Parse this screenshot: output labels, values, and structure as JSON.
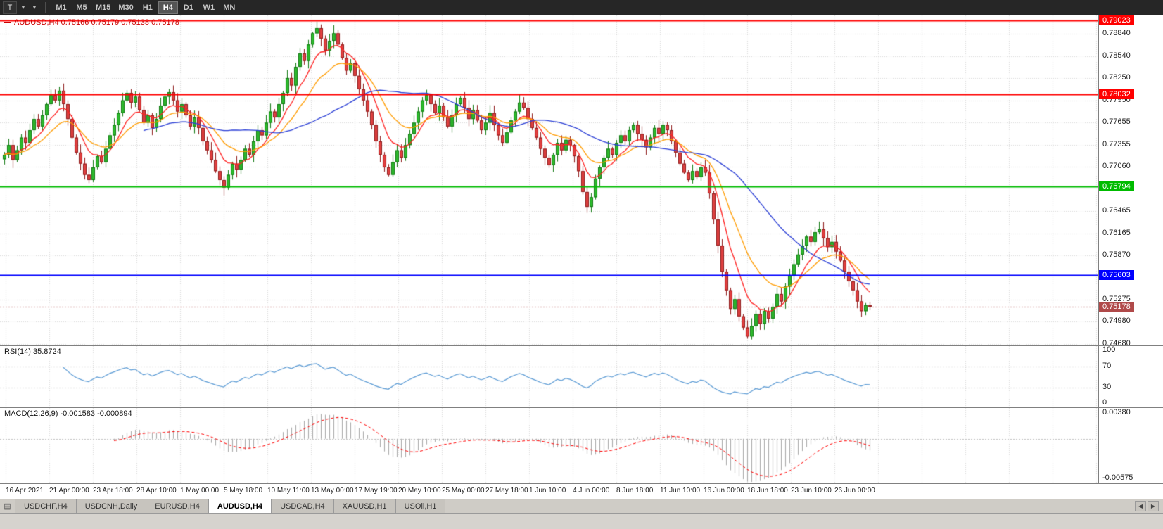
{
  "toolbar": {
    "template_button": "T",
    "dropdown_icon": "▼",
    "timeframes": [
      {
        "label": "M1",
        "active": false
      },
      {
        "label": "M5",
        "active": false
      },
      {
        "label": "M15",
        "active": false
      },
      {
        "label": "M30",
        "active": false
      },
      {
        "label": "H1",
        "active": false
      },
      {
        "label": "H4",
        "active": true
      },
      {
        "label": "D1",
        "active": false
      },
      {
        "label": "W1",
        "active": false
      },
      {
        "label": "MN",
        "active": false
      }
    ]
  },
  "chart_header": {
    "title": "AUDUSD,H4 0.75166 0.75179 0.75138 0.75178"
  },
  "price_axis": {
    "ticks": [
      "0.78840",
      "0.78540",
      "0.78250",
      "0.77950",
      "0.77655",
      "0.77355",
      "0.77060",
      "0.76465",
      "0.76165",
      "0.75870",
      "0.75275",
      "0.74980",
      "0.74680"
    ]
  },
  "levels": [
    {
      "label": "0.79023",
      "value": 0.79023,
      "color": "#ff0000",
      "style": "solid",
      "width": 2,
      "name": "resistance-1"
    },
    {
      "label": "0.78032",
      "value": 0.78032,
      "color": "#ff0000",
      "style": "solid",
      "width": 2,
      "name": "resistance-2"
    },
    {
      "label": "0.76794",
      "value": 0.76794,
      "color": "#00bb00",
      "style": "solid",
      "width": 2,
      "name": "support-1"
    },
    {
      "label": "0.75603",
      "value": 0.75603,
      "color": "#0000ff",
      "style": "solid",
      "width": 2,
      "name": "support-2"
    },
    {
      "label": "0.75178",
      "value": 0.75178,
      "color": "#b04a4a",
      "style": "dotted",
      "width": 1,
      "name": "bid-price"
    }
  ],
  "rsi_panel": {
    "label": "RSI(14) 35.8724",
    "value": 35.8724,
    "ticks": [
      "100",
      "70",
      "30",
      "0"
    ]
  },
  "macd_panel": {
    "label": "MACD(12,26,9) -0.001583 -0.000894",
    "macd_value": -0.001583,
    "signal_value": -0.000894,
    "ticks": [
      "0.00380",
      "-0.00575"
    ]
  },
  "time_axis": {
    "labels": [
      "16 Apr 2021",
      "21 Apr 00:00",
      "23 Apr 18:00",
      "28 Apr 10:00",
      "1 May 00:00",
      "5 May 18:00",
      "10 May 11:00",
      "13 May 00:00",
      "17 May 19:00",
      "20 May 10:00",
      "25 May 00:00",
      "27 May 18:00",
      "1 Jun 10:00",
      "4 Jun 00:00",
      "8 Jun 18:00",
      "11 Jun 10:00",
      "16 Jun 00:00",
      "18 Jun 18:00",
      "23 Jun 10:00",
      "26 Jun 00:00"
    ]
  },
  "tab_bar": {
    "tabs": [
      {
        "label": "USDCHF,H4",
        "active": false
      },
      {
        "label": "USDCNH,Daily",
        "active": false
      },
      {
        "label": "EURUSD,H4",
        "active": false
      },
      {
        "label": "AUDUSD,H4",
        "active": true
      },
      {
        "label": "USDCAD,H4",
        "active": false
      },
      {
        "label": "XAUUSD,H1",
        "active": false
      },
      {
        "label": "USOil,H1",
        "active": false
      }
    ],
    "scroll_left": "◀",
    "scroll_right": "▶"
  },
  "chart_data": {
    "type": "candlestick",
    "title": "AUDUSD,H4",
    "symbol": "AUDUSD",
    "timeframe": "H4",
    "last_ohlc": {
      "open": 0.75166,
      "high": 0.75179,
      "low": 0.75138,
      "close": 0.75178
    },
    "ylim": [
      0.7466,
      0.7909
    ],
    "closes": [
      0.7722,
      0.7735,
      0.7715,
      0.7728,
      0.7745,
      0.7738,
      0.7755,
      0.777,
      0.776,
      0.7775,
      0.779,
      0.7802,
      0.7795,
      0.7808,
      0.779,
      0.777,
      0.7745,
      0.7725,
      0.771,
      0.7695,
      0.7688,
      0.7705,
      0.772,
      0.7712,
      0.773,
      0.7748,
      0.7762,
      0.7778,
      0.7795,
      0.7805,
      0.7792,
      0.78,
      0.7782,
      0.7765,
      0.7775,
      0.7758,
      0.777,
      0.7788,
      0.78,
      0.7806,
      0.7795,
      0.778,
      0.779,
      0.7775,
      0.776,
      0.7772,
      0.7758,
      0.774,
      0.7728,
      0.7715,
      0.77,
      0.7688,
      0.7678,
      0.7695,
      0.771,
      0.7702,
      0.7715,
      0.773,
      0.7722,
      0.774,
      0.7755,
      0.7748,
      0.7765,
      0.778,
      0.7772,
      0.779,
      0.7805,
      0.7825,
      0.7815,
      0.784,
      0.7858,
      0.7848,
      0.787,
      0.7885,
      0.7892,
      0.7878,
      0.7862,
      0.7875,
      0.7885,
      0.787,
      0.7852,
      0.7835,
      0.7845,
      0.7828,
      0.781,
      0.7795,
      0.778,
      0.7762,
      0.774,
      0.7722,
      0.7705,
      0.7695,
      0.7712,
      0.7728,
      0.7718,
      0.7735,
      0.775,
      0.7765,
      0.778,
      0.7795,
      0.7802,
      0.779,
      0.7778,
      0.7788,
      0.7772,
      0.776,
      0.7775,
      0.779,
      0.7798,
      0.7785,
      0.777,
      0.7782,
      0.7768,
      0.7755,
      0.7765,
      0.7778,
      0.7762,
      0.7748,
      0.7738,
      0.7752,
      0.7768,
      0.778,
      0.7792,
      0.7785,
      0.777,
      0.7758,
      0.7745,
      0.773,
      0.7718,
      0.7708,
      0.7722,
      0.7738,
      0.7728,
      0.7742,
      0.7735,
      0.772,
      0.77,
      0.7672,
      0.7652,
      0.7665,
      0.769,
      0.7705,
      0.7718,
      0.773,
      0.7722,
      0.7738,
      0.7748,
      0.774,
      0.7755,
      0.7762,
      0.775,
      0.7742,
      0.7732,
      0.7745,
      0.7758,
      0.775,
      0.7762,
      0.7755,
      0.774,
      0.7725,
      0.771,
      0.7698,
      0.7688,
      0.77,
      0.7692,
      0.7705,
      0.7698,
      0.767,
      0.7635,
      0.76,
      0.7565,
      0.754,
      0.7515,
      0.7528,
      0.7505,
      0.749,
      0.7478,
      0.7492,
      0.7508,
      0.7495,
      0.7512,
      0.7502,
      0.7518,
      0.7535,
      0.7525,
      0.7545,
      0.756,
      0.7575,
      0.7588,
      0.76,
      0.7612,
      0.7605,
      0.7618,
      0.7622,
      0.761,
      0.7598,
      0.7605,
      0.7592,
      0.758,
      0.7565,
      0.7552,
      0.754,
      0.7525,
      0.7512,
      0.752,
      0.75178
    ],
    "moving_averages": [
      {
        "name": "fast",
        "method": "ema",
        "period": 8,
        "color": "#ff2222"
      },
      {
        "name": "medium",
        "method": "ema",
        "period": 17,
        "color": "#ff9c00"
      },
      {
        "name": "slow",
        "method": "sma",
        "period": 34,
        "color": "#2b3fd6"
      }
    ],
    "rsi": {
      "period": 14,
      "range": [
        0,
        100
      ],
      "overbought": 70,
      "oversold": 30
    },
    "macd": {
      "fast": 12,
      "slow": 26,
      "signal": 9,
      "axis_max": 0.0045,
      "axis_min": -0.0065
    },
    "colors": {
      "background": "#ffffff",
      "grid": "#d9d9d9",
      "bull_fill": "#2db92d",
      "bull_border": "#137a13",
      "bear_fill": "#e04040",
      "bear_border": "#8f1d1d",
      "rsi_line": "#5b9bd5",
      "rsi_level": "#c0c0c0",
      "macd_histogram": "#a8a8a8",
      "macd_signal": "#ff0000"
    }
  }
}
